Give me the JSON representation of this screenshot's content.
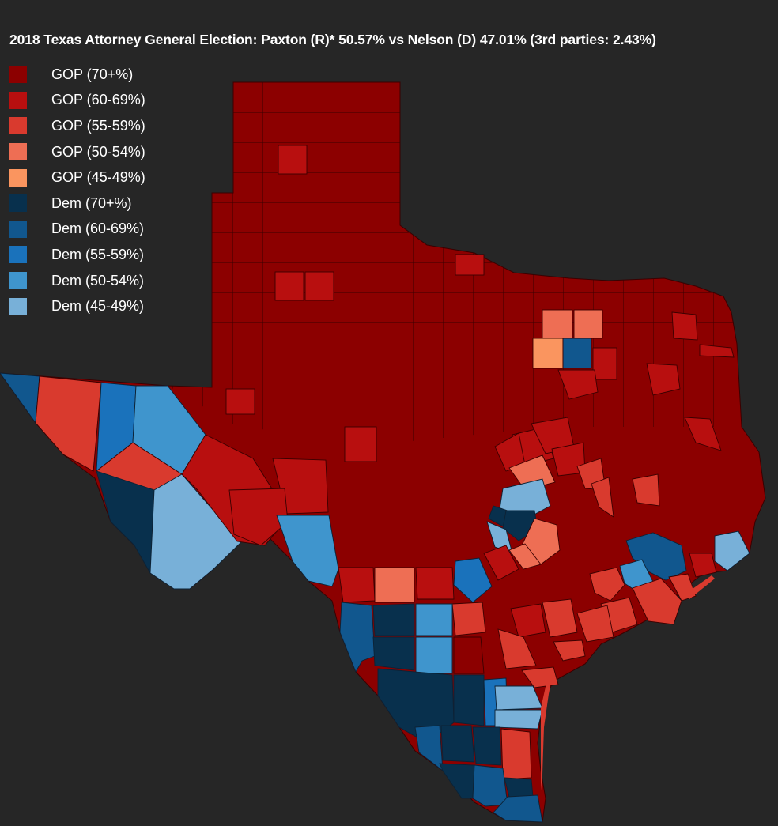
{
  "title": "2018 Texas Attorney General Election: Paxton (R)* 50.57% vs Nelson (D) 47.01% (3rd parties: 2.43%)",
  "colors": {
    "gop_70": "#8c0000",
    "gop_60": "#b80f0f",
    "gop_55": "#d93a2e",
    "gop_50": "#ee6e54",
    "gop_45": "#fa955f",
    "dem_70": "#08304d",
    "dem_60": "#11578e",
    "dem_55": "#1a72bb",
    "dem_50": "#3f95cd",
    "dem_45": "#78b0d8",
    "background": "#262626",
    "text": "#ffffff"
  },
  "legend": [
    {
      "label": "GOP (70+%)",
      "color": "#8c0000"
    },
    {
      "label": "GOP (60-69%)",
      "color": "#b80f0f"
    },
    {
      "label": "GOP (55-59%)",
      "color": "#d93a2e"
    },
    {
      "label": "GOP (50-54%)",
      "color": "#ee6e54"
    },
    {
      "label": "GOP (45-49%)",
      "color": "#fa955f"
    },
    {
      "label": "Dem (70+%)",
      "color": "#08304d"
    },
    {
      "label": "Dem (60-69%)",
      "color": "#11578e"
    },
    {
      "label": "Dem (55-59%)",
      "color": "#1a72bb"
    },
    {
      "label": "Dem (50-54%)",
      "color": "#3f95cd"
    },
    {
      "label": "Dem (45-49%)",
      "color": "#78b0d8"
    }
  ],
  "results": {
    "Paxton (R)*": 50.57,
    "Nelson (D)": 47.01,
    "3rd parties": 2.43
  }
}
